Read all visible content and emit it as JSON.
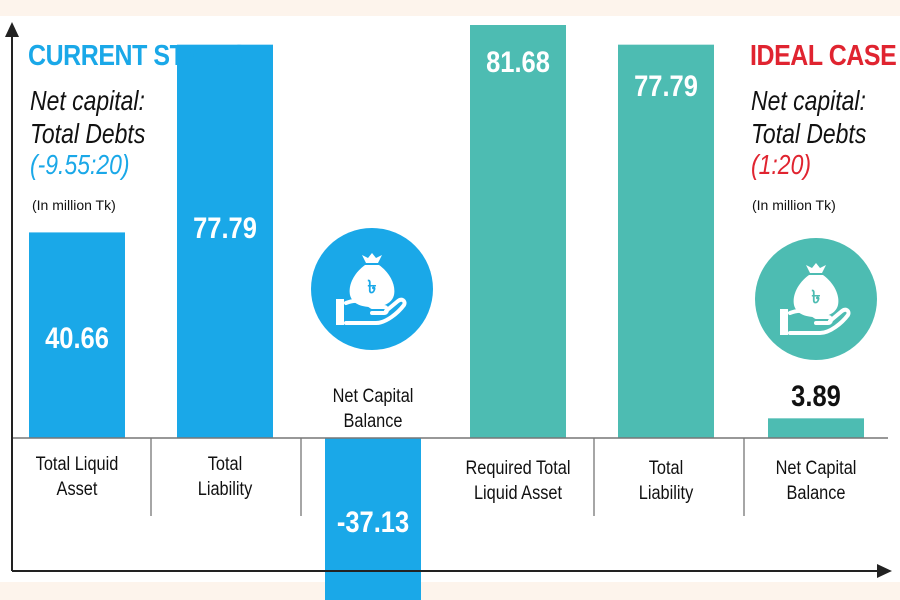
{
  "current": {
    "heading": "CURRENT STATUS",
    "subtitle_line1": "Net capital:",
    "subtitle_line2": "Total Debts",
    "ratio": "(-9.55:20)",
    "unit": "(In million Tk)"
  },
  "ideal": {
    "heading": "IDEAL CASE",
    "subtitle_line1": "Net capital:",
    "subtitle_line2": "Total Debts",
    "ratio": "(1:20)",
    "unit": "(In million Tk)"
  },
  "colors": {
    "current": "#1aa8e8",
    "ideal": "#4dbcb2",
    "ideal_heading": "#e02430",
    "axis": "#222222"
  },
  "icons": [
    "money-bag-hand-icon",
    "money-bag-hand-icon"
  ],
  "chart_data": {
    "type": "bar",
    "title": "Net capital : Total Debts (In million Tk)",
    "ylim": [
      -40,
      85
    ],
    "groups": [
      {
        "name": "CURRENT STATUS",
        "categories": [
          "Total Liquid\nAsset",
          "Total\nLiability",
          "Net Capital\nBalance"
        ],
        "values": [
          40.66,
          77.79,
          -37.13
        ],
        "labels": [
          "40.66",
          "77.79",
          "-37.13"
        ]
      },
      {
        "name": "IDEAL CASE",
        "categories": [
          "Required Total\nLiquid Asset",
          "Total\nLiability",
          "Net Capital\nBalance"
        ],
        "values": [
          81.68,
          77.79,
          3.89
        ],
        "labels": [
          "81.68",
          "77.79",
          "3.89"
        ]
      }
    ]
  }
}
